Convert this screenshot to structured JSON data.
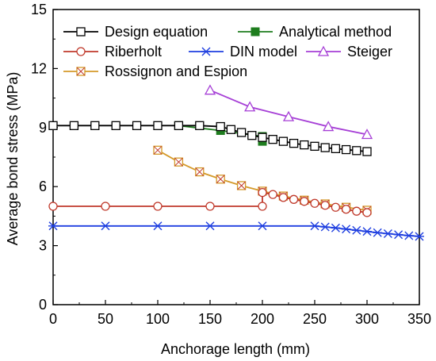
{
  "chart_data": {
    "type": "line",
    "xlabel": "Anchorage length (mm)",
    "ylabel": "Average bond stress (MPa)",
    "xlim": [
      0,
      350
    ],
    "ylim": [
      0,
      15
    ],
    "xticks": [
      0,
      50,
      100,
      150,
      200,
      250,
      300,
      350
    ],
    "yticks": [
      0,
      3,
      6,
      9,
      12,
      15
    ],
    "grid": false,
    "legend_placement": "top",
    "series": [
      {
        "name": "Design equation",
        "color": "#000000",
        "marker": "open-square",
        "x": [
          0,
          20,
          40,
          60,
          80,
          100,
          120,
          140,
          160,
          170,
          180,
          190,
          200,
          210,
          220,
          230,
          240,
          250,
          260,
          270,
          280,
          290,
          300
        ],
        "y": [
          9.1,
          9.1,
          9.1,
          9.1,
          9.1,
          9.1,
          9.1,
          9.1,
          9.05,
          8.9,
          8.75,
          8.6,
          8.5,
          8.4,
          8.3,
          8.2,
          8.12,
          8.05,
          7.98,
          7.93,
          7.88,
          7.83,
          7.78
        ]
      },
      {
        "name": "Analytical method",
        "color": "#1e7d1e",
        "marker": "filled-square",
        "x": [
          120,
          160,
          200,
          200
        ],
        "y": [
          9.1,
          8.85,
          8.55,
          8.3
        ]
      },
      {
        "name": "Riberholt",
        "color": "#c0392b",
        "marker": "open-circle",
        "x": [
          0,
          50,
          100,
          150,
          200,
          200,
          210,
          220,
          230,
          240,
          250,
          260,
          270,
          280,
          290,
          300
        ],
        "y": [
          5.0,
          5.0,
          5.0,
          5.0,
          5.0,
          5.7,
          5.6,
          5.45,
          5.35,
          5.25,
          5.15,
          5.05,
          4.95,
          4.85,
          4.75,
          4.68
        ]
      },
      {
        "name": "DIN model",
        "color": "#1f3fe0",
        "marker": "asterisk",
        "x": [
          0,
          50,
          100,
          150,
          200,
          250,
          260,
          270,
          280,
          290,
          300,
          310,
          320,
          330,
          340,
          350
        ],
        "y": [
          4.0,
          4.0,
          4.0,
          4.0,
          4.0,
          4.0,
          3.95,
          3.9,
          3.84,
          3.78,
          3.72,
          3.66,
          3.61,
          3.56,
          3.51,
          3.47
        ]
      },
      {
        "name": "Steiger",
        "color": "#a63fd6",
        "marker": "open-triangle",
        "x": [
          150,
          188,
          225,
          263,
          300
        ],
        "y": [
          10.9,
          10.05,
          9.55,
          9.05,
          8.65
        ]
      },
      {
        "name": "Rossignon and Espion",
        "color": "#d49a2a",
        "marker": "boxed-x",
        "x": [
          100,
          120,
          140,
          160,
          180,
          200,
          220,
          240,
          260,
          280,
          300
        ],
        "y": [
          7.85,
          7.25,
          6.75,
          6.38,
          6.05,
          5.77,
          5.52,
          5.31,
          5.12,
          4.95,
          4.8
        ]
      }
    ]
  }
}
